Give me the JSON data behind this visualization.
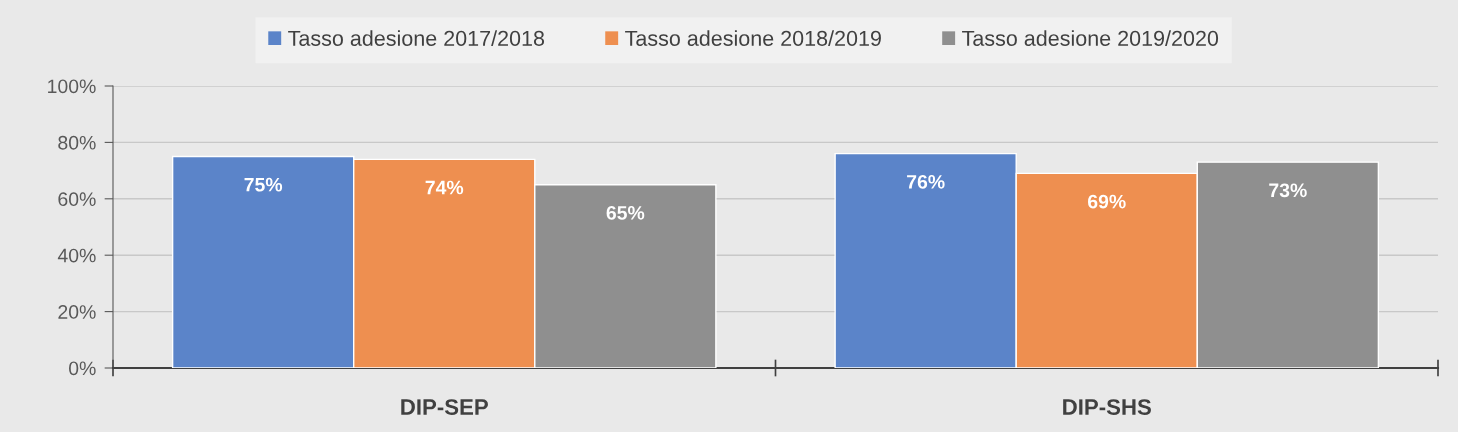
{
  "chart_data": {
    "type": "bar",
    "categories": [
      "DIP-SEP",
      "DIP-SHS"
    ],
    "series": [
      {
        "name": "Tasso adesione 2017/2018",
        "color": "#5b84c9",
        "values": [
          75,
          76
        ],
        "value_labels": [
          "75%",
          "76%"
        ]
      },
      {
        "name": "Tasso adesione 2018/2019",
        "color": "#ee8f50",
        "values": [
          74,
          69
        ],
        "value_labels": [
          "74%",
          "69%"
        ]
      },
      {
        "name": "Tasso adesione 2019/2020",
        "color": "#8f8f8f",
        "values": [
          65,
          73
        ],
        "value_labels": [
          "65%",
          "73%"
        ]
      }
    ],
    "ylim": [
      0,
      100
    ],
    "yticks": [
      {
        "value": 0,
        "label": "0%"
      },
      {
        "value": 20,
        "label": "20%"
      },
      {
        "value": 40,
        "label": "40%"
      },
      {
        "value": 60,
        "label": "60%"
      },
      {
        "value": 80,
        "label": "80%"
      },
      {
        "value": 100,
        "label": "100%"
      }
    ],
    "grid": "y",
    "legend": "top"
  }
}
